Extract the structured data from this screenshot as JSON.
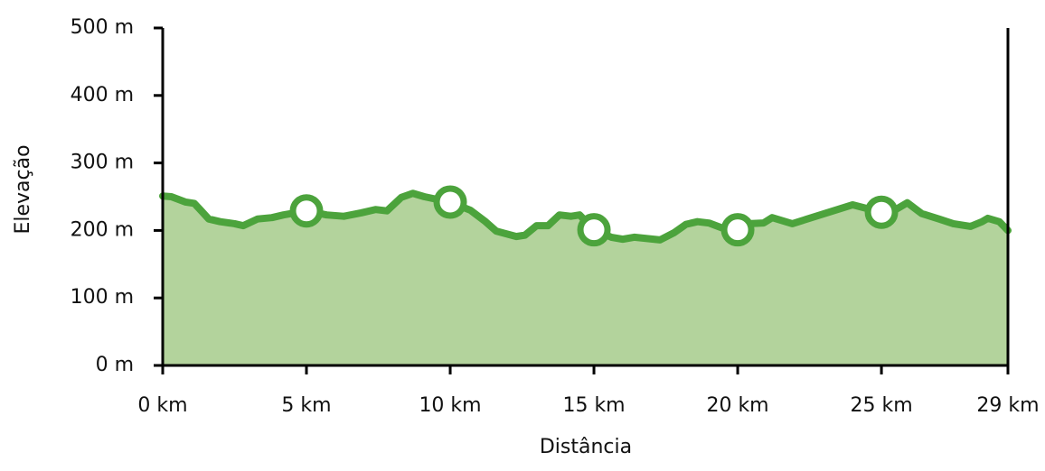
{
  "chart_data": {
    "type": "area",
    "x_label": "Distância",
    "y_label": "Elevação",
    "x": [
      0,
      0.3,
      0.8,
      1.1,
      1.3,
      1.6,
      2.0,
      2.5,
      2.8,
      3.3,
      3.8,
      4.2,
      5.0,
      5.7,
      6.3,
      6.9,
      7.4,
      7.8,
      8.3,
      8.7,
      9.1,
      10.0,
      10.7,
      11.2,
      11.6,
      12.3,
      12.6,
      13.0,
      13.4,
      13.8,
      14.2,
      14.5,
      15.0,
      15.6,
      16.0,
      16.4,
      17.3,
      17.8,
      18.2,
      18.6,
      19.0,
      19.5,
      20.0,
      20.4,
      20.9,
      21.2,
      21.9,
      24.0,
      25.0,
      25.5,
      25.9,
      26.4,
      27.0,
      27.5,
      28.1,
      28.5,
      28.7,
      29.1,
      29.4
    ],
    "values": [
      251,
      250,
      242,
      240,
      231,
      217,
      213,
      210,
      207,
      217,
      219,
      223,
      229,
      223,
      221,
      226,
      231,
      229,
      249,
      255,
      250,
      242,
      230,
      214,
      199,
      191,
      193,
      207,
      207,
      223,
      221,
      223,
      201,
      190,
      187,
      190,
      186,
      197,
      209,
      213,
      211,
      203,
      201,
      210,
      211,
      219,
      210,
      238,
      227,
      231,
      241,
      225,
      217,
      210,
      206,
      213,
      218,
      213,
      200
    ],
    "markers": {
      "x": [
        5,
        10,
        15,
        20,
        25
      ],
      "values": [
        229,
        242,
        201,
        201,
        227
      ]
    },
    "color": "#4ca33c",
    "fill_color": "#b3d39c",
    "xlim": [
      0,
      29.4
    ],
    "xticks": [
      {
        "value": 0,
        "label": "0 km"
      },
      {
        "value": 5,
        "label": "5 km"
      },
      {
        "value": 10,
        "label": "10 km"
      },
      {
        "value": 15,
        "label": "15 km"
      },
      {
        "value": 20,
        "label": "20 km"
      },
      {
        "value": 25,
        "label": "25 km"
      },
      {
        "value": 29.4,
        "label": "29 km"
      }
    ],
    "ylim": [
      0,
      500
    ],
    "yticks": [
      {
        "value": 0,
        "label": "0 m"
      },
      {
        "value": 100,
        "label": "100 m"
      },
      {
        "value": 200,
        "label": "200 m"
      },
      {
        "value": 300,
        "label": "300 m"
      },
      {
        "value": 400,
        "label": "400 m"
      },
      {
        "value": 500,
        "label": "500 m"
      }
    ]
  }
}
